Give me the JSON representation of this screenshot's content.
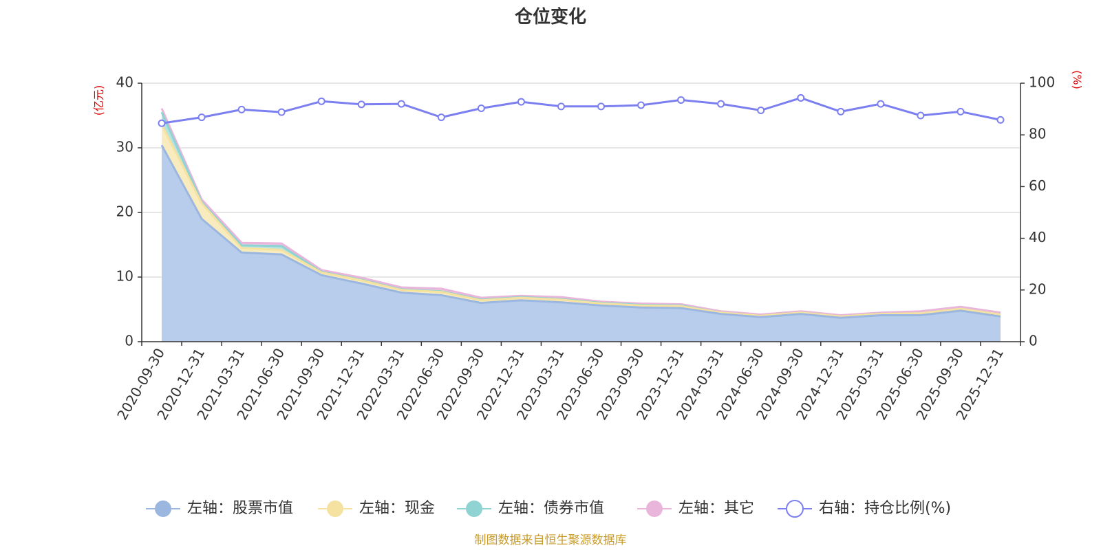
{
  "chart_data": {
    "type": "area",
    "title": "仓位变化",
    "source_note": "制图数据来自恒生聚源数据库",
    "categories": [
      "2020-09-30",
      "2020-12-31",
      "2021-03-31",
      "2021-06-30",
      "2021-09-30",
      "2021-12-31",
      "2022-03-31",
      "2022-06-30",
      "2022-09-30",
      "2022-12-31",
      "2023-03-31",
      "2023-06-30",
      "2023-09-30",
      "2023-12-31",
      "2024-03-31",
      "2024-06-30",
      "2024-09-30",
      "2024-12-31",
      "2025-03-31",
      "2025-06-30",
      "2025-09-30",
      "2025-12-31"
    ],
    "left_axis": {
      "unit": "(亿元)",
      "ylim": [
        0,
        40
      ],
      "ticks": [
        0,
        10,
        20,
        30,
        40
      ]
    },
    "right_axis": {
      "unit": "(%)",
      "ylim": [
        0,
        100
      ],
      "ticks": [
        0,
        20,
        40,
        60,
        80,
        100
      ]
    },
    "grid": true,
    "legend_position": "bottom",
    "series": [
      {
        "name": "左轴：股票市值",
        "axis": "left",
        "kind": "stack",
        "color": "#9bb7e0",
        "fill": "#b8cdeb",
        "values": [
          30.4,
          19.0,
          13.8,
          13.5,
          10.3,
          9.0,
          7.6,
          7.2,
          6.0,
          6.4,
          6.1,
          5.6,
          5.3,
          5.2,
          4.3,
          3.8,
          4.3,
          3.7,
          4.1,
          4.1,
          4.8,
          3.9
        ]
      },
      {
        "name": "左轴：现金",
        "axis": "left",
        "kind": "stack",
        "color": "#f5e1a0",
        "fill": "#f8ebbd",
        "values": [
          3.2,
          2.4,
          0.7,
          0.7,
          0.4,
          0.5,
          0.4,
          0.5,
          0.4,
          0.4,
          0.4,
          0.3,
          0.3,
          0.3,
          0.2,
          0.2,
          0.2,
          0.2,
          0.2,
          0.3,
          0.3,
          0.3
        ]
      },
      {
        "name": "左轴：债券市值",
        "axis": "left",
        "kind": "stack",
        "color": "#8fd3d3",
        "fill": "#b5e3e3",
        "values": [
          1.9,
          0.2,
          0.4,
          0.6,
          0.1,
          0.1,
          0.1,
          0.1,
          0.1,
          0.1,
          0.1,
          0.1,
          0.1,
          0.1,
          0.0,
          0.0,
          0.0,
          0.0,
          0.0,
          0.0,
          0.0,
          0.0
        ]
      },
      {
        "name": "左轴：其它",
        "axis": "left",
        "kind": "stack",
        "color": "#e9b5da",
        "fill": "#efc8e3",
        "values": [
          0.6,
          0.4,
          0.4,
          0.4,
          0.3,
          0.3,
          0.3,
          0.4,
          0.3,
          0.2,
          0.3,
          0.2,
          0.2,
          0.2,
          0.2,
          0.2,
          0.2,
          0.2,
          0.2,
          0.3,
          0.3,
          0.3
        ]
      },
      {
        "name": "右轴：持仓比例(%)",
        "axis": "right",
        "kind": "line",
        "color": "#7b7ff0",
        "values": [
          84.5,
          86.8,
          89.8,
          88.8,
          93.0,
          91.8,
          92.0,
          86.8,
          90.3,
          92.8,
          91.0,
          91.0,
          91.5,
          93.5,
          92.0,
          89.5,
          94.3,
          89.0,
          92.0,
          87.5,
          89.0,
          85.8
        ]
      }
    ]
  }
}
